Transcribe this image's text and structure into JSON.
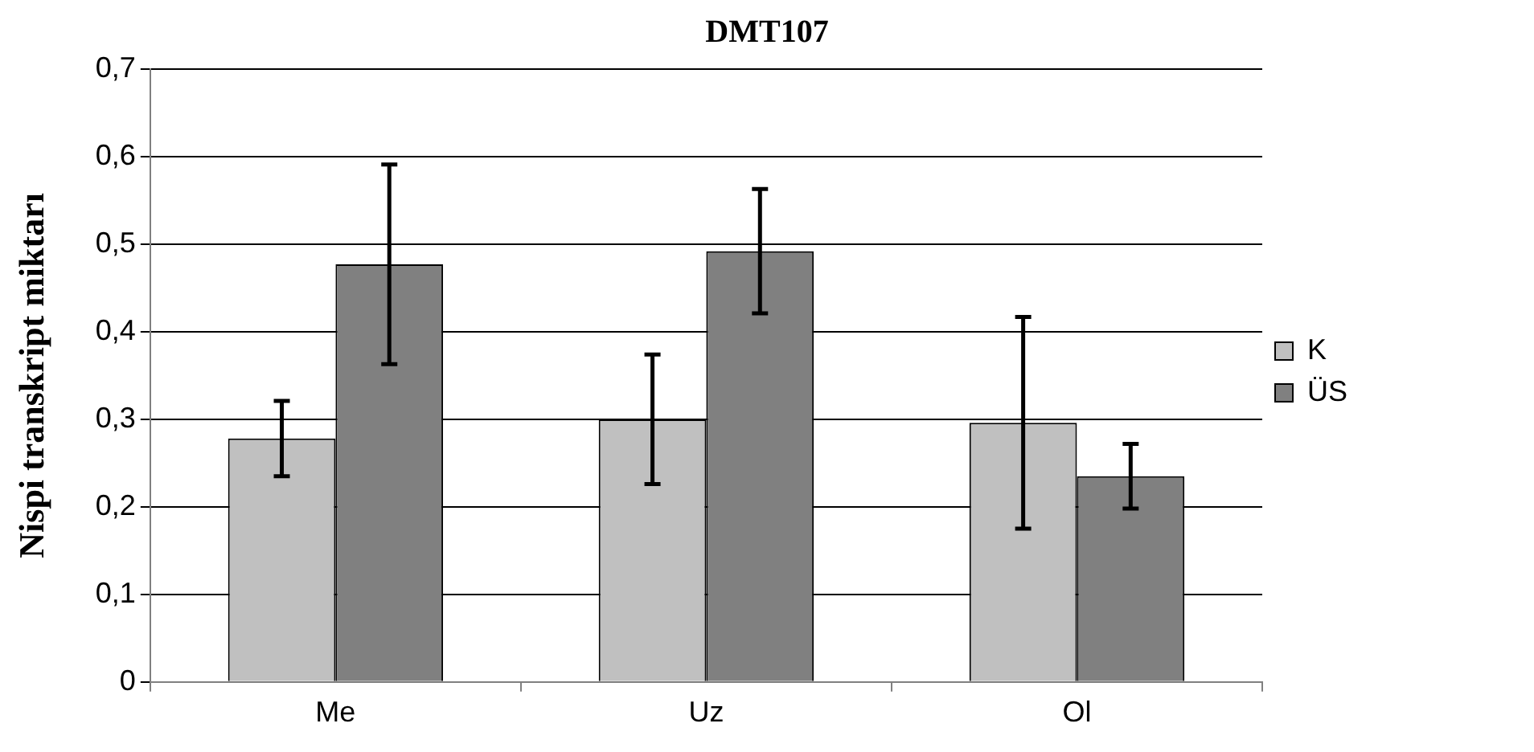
{
  "chart_data": {
    "type": "bar",
    "title": "DMT107",
    "ylabel": "Nispi transkript miktarı",
    "categories": [
      "Me",
      "Uz",
      "Ol"
    ],
    "series": [
      {
        "name": "K",
        "color": "#c0c0c0",
        "values": [
          0.278,
          0.3,
          0.296
        ],
        "errors": [
          0.043,
          0.074,
          0.121
        ]
      },
      {
        "name": "ÜS",
        "color": "#808080",
        "values": [
          0.477,
          0.492,
          0.235
        ],
        "errors": [
          0.114,
          0.071,
          0.037
        ]
      }
    ],
    "ylim": [
      0,
      0.7
    ],
    "yticks": [
      {
        "value": 0,
        "label": "0"
      },
      {
        "value": 0.1,
        "label": "0,1"
      },
      {
        "value": 0.2,
        "label": "0,2"
      },
      {
        "value": 0.3,
        "label": "0,3"
      },
      {
        "value": 0.4,
        "label": "0,4"
      },
      {
        "value": 0.5,
        "label": "0,5"
      },
      {
        "value": 0.6,
        "label": "0,6"
      },
      {
        "value": 0.7,
        "label": "0,7"
      }
    ],
    "grid": "y",
    "legend": "right"
  }
}
